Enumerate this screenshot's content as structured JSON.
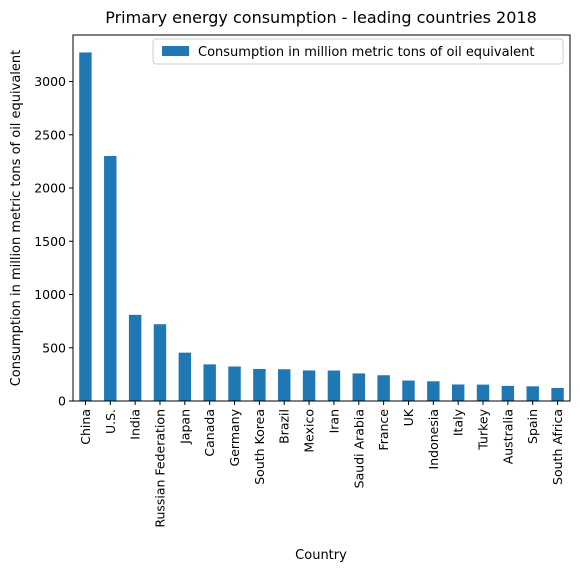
{
  "chart_data": {
    "type": "bar",
    "title": "Primary energy consumption - leading countries 2018",
    "xlabel": "Country",
    "ylabel": "Consumption in million metric tons of oil equivalent",
    "categories": [
      "China",
      "U.S.",
      "India",
      "Russian Federation",
      "Japan",
      "Canada",
      "Germany",
      "South Korea",
      "Brazil",
      "Mexico",
      "Iran",
      "Saudi Arabia",
      "France",
      "UK",
      "Indonesia",
      "Italy",
      "Turkey",
      "Australia",
      "Spain",
      "South Africa"
    ],
    "series": [
      {
        "name": "Consumption in million metric tons of oil equivalent",
        "values": [
          3273,
          2301,
          809,
          721,
          454,
          344,
          324,
          301,
          298,
          287,
          286,
          259,
          242,
          192,
          185,
          155,
          154,
          142,
          138,
          122
        ],
        "color": "#1f77b4"
      }
    ],
    "ylim": [
      0,
      3437
    ],
    "yticks": [
      0,
      500,
      1000,
      1500,
      2000,
      2500,
      3000
    ],
    "grid": false,
    "legend_position": "top-right"
  }
}
